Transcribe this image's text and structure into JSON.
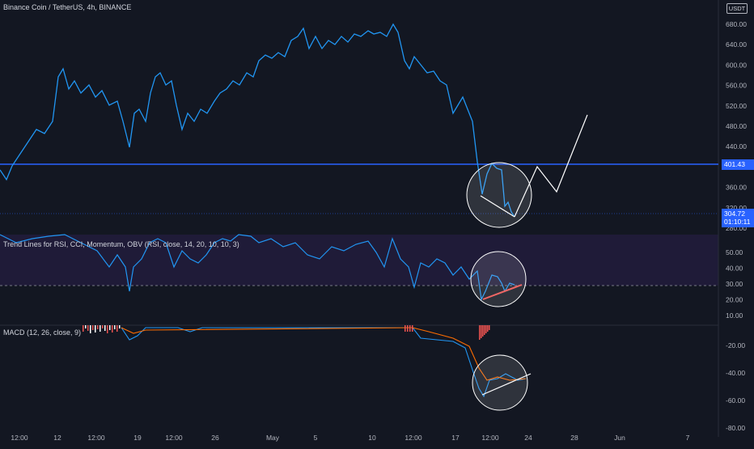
{
  "header": {
    "title": "Binance Coin / TetherUS, 4h, BINANCE",
    "currency_badge": "USDT"
  },
  "price_pane": {
    "axis_ticks": [
      "680.00",
      "640.00",
      "600.00",
      "560.00",
      "520.00",
      "480.00",
      "440.00",
      "400.00",
      "360.00",
      "320.00",
      "280.00"
    ],
    "horizontal_level": "401.43",
    "last_price": "304.72",
    "countdown": "01:10:11",
    "line_color": "#2196f3"
  },
  "rsi_pane": {
    "title": "Trend Lines for RSI, CCI, Momentum, OBV (RSI, close, 14, 20, 10, 10, 3)",
    "axis_ticks": [
      "50.00",
      "40.00",
      "30.00",
      "20.00",
      "10.00"
    ]
  },
  "macd_pane": {
    "title": "MACD (12, 26, close, 9)",
    "axis_ticks": [
      "-20.00",
      "-40.00",
      "-60.00",
      "-80.00"
    ]
  },
  "time_axis": {
    "labels": [
      "12:00",
      "12",
      "12:00",
      "19",
      "12:00",
      "26",
      "May",
      "5",
      "10",
      "12:00",
      "17",
      "12:00",
      "24",
      "28",
      "Jun",
      "7"
    ]
  },
  "colors": {
    "background": "#131722",
    "price_line": "#2196f3",
    "level_line": "#2962ff",
    "rsi_band": "#2a1f4a",
    "macd_signal": "#ff6d00",
    "trendline_red": "#ef5350"
  }
}
